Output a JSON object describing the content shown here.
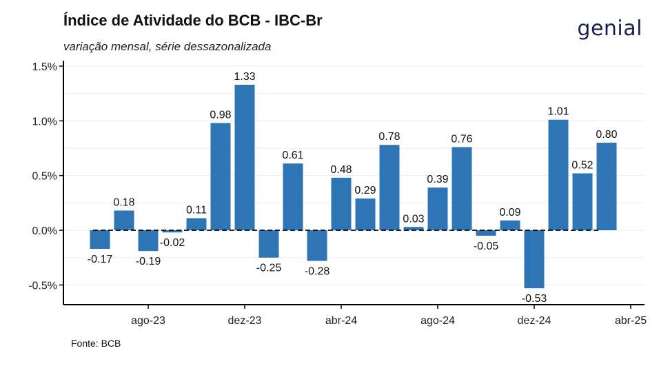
{
  "header": {
    "title": "Índice de Atividade do BCB - IBC-Br",
    "subtitle": "variação mensal, série dessazonalizada",
    "logo_text": "genial"
  },
  "footer": {
    "source": "Fonte: BCB"
  },
  "colors": {
    "bar": "#2e75b6",
    "axis": "#000000",
    "grid": "#ebebeb",
    "zero_line": "#000000"
  },
  "chart_data": {
    "type": "bar",
    "categories": [
      "jun-23",
      "jul-23",
      "ago-23",
      "set-23",
      "out-23",
      "nov-23",
      "dez-23",
      "jan-24",
      "fev-24",
      "mar-24",
      "abr-24",
      "mai-24",
      "jun-24",
      "jul-24",
      "ago-24",
      "set-24",
      "out-24",
      "nov-24",
      "dez-24",
      "jan-25",
      "fev-25",
      "mar-25",
      "abr-25"
    ],
    "values": [
      -0.17,
      0.18,
      -0.19,
      -0.02,
      0.11,
      0.98,
      1.33,
      -0.25,
      0.61,
      -0.28,
      0.48,
      0.29,
      0.78,
      0.03,
      0.39,
      0.76,
      -0.05,
      0.09,
      -0.53,
      1.01,
      0.52,
      0.8,
      null
    ],
    "data_labels": [
      "-0.17",
      "0.18",
      "-0.19",
      "-0.02",
      "0.11",
      "0.98",
      "1.33",
      "-0.25",
      "0.61",
      "-0.28",
      "0.48",
      "0.29",
      "0.78",
      "0.03",
      "0.39",
      "0.76",
      "-0.05",
      "0.09",
      "-0.53",
      "1.01",
      "0.52",
      "0.80",
      ""
    ],
    "x_tick_labels": [
      {
        "category": "ago-23",
        "label": "ago-23"
      },
      {
        "category": "dez-23",
        "label": "dez-23"
      },
      {
        "category": "abr-24",
        "label": "abr-24"
      },
      {
        "category": "ago-24",
        "label": "ago-24"
      },
      {
        "category": "dez-24",
        "label": "dez-24"
      },
      {
        "category": "abr-25",
        "label": "abr-25"
      }
    ],
    "y_ticks": [
      {
        "value": -0.5,
        "label": "-0.5%"
      },
      {
        "value": 0.0,
        "label": "0.0%"
      },
      {
        "value": 0.5,
        "label": "0.5%"
      },
      {
        "value": 1.0,
        "label": "1.0%"
      },
      {
        "value": 1.5,
        "label": "1.5%"
      }
    ],
    "title": "Índice de Atividade do BCB - IBC-Br",
    "subtitle": "variação mensal, série dessazonalizada",
    "xlabel": "",
    "ylabel": "",
    "ylim": [
      -0.68,
      1.55
    ],
    "grid": true,
    "zero_line": "dashed",
    "legend": "none"
  }
}
